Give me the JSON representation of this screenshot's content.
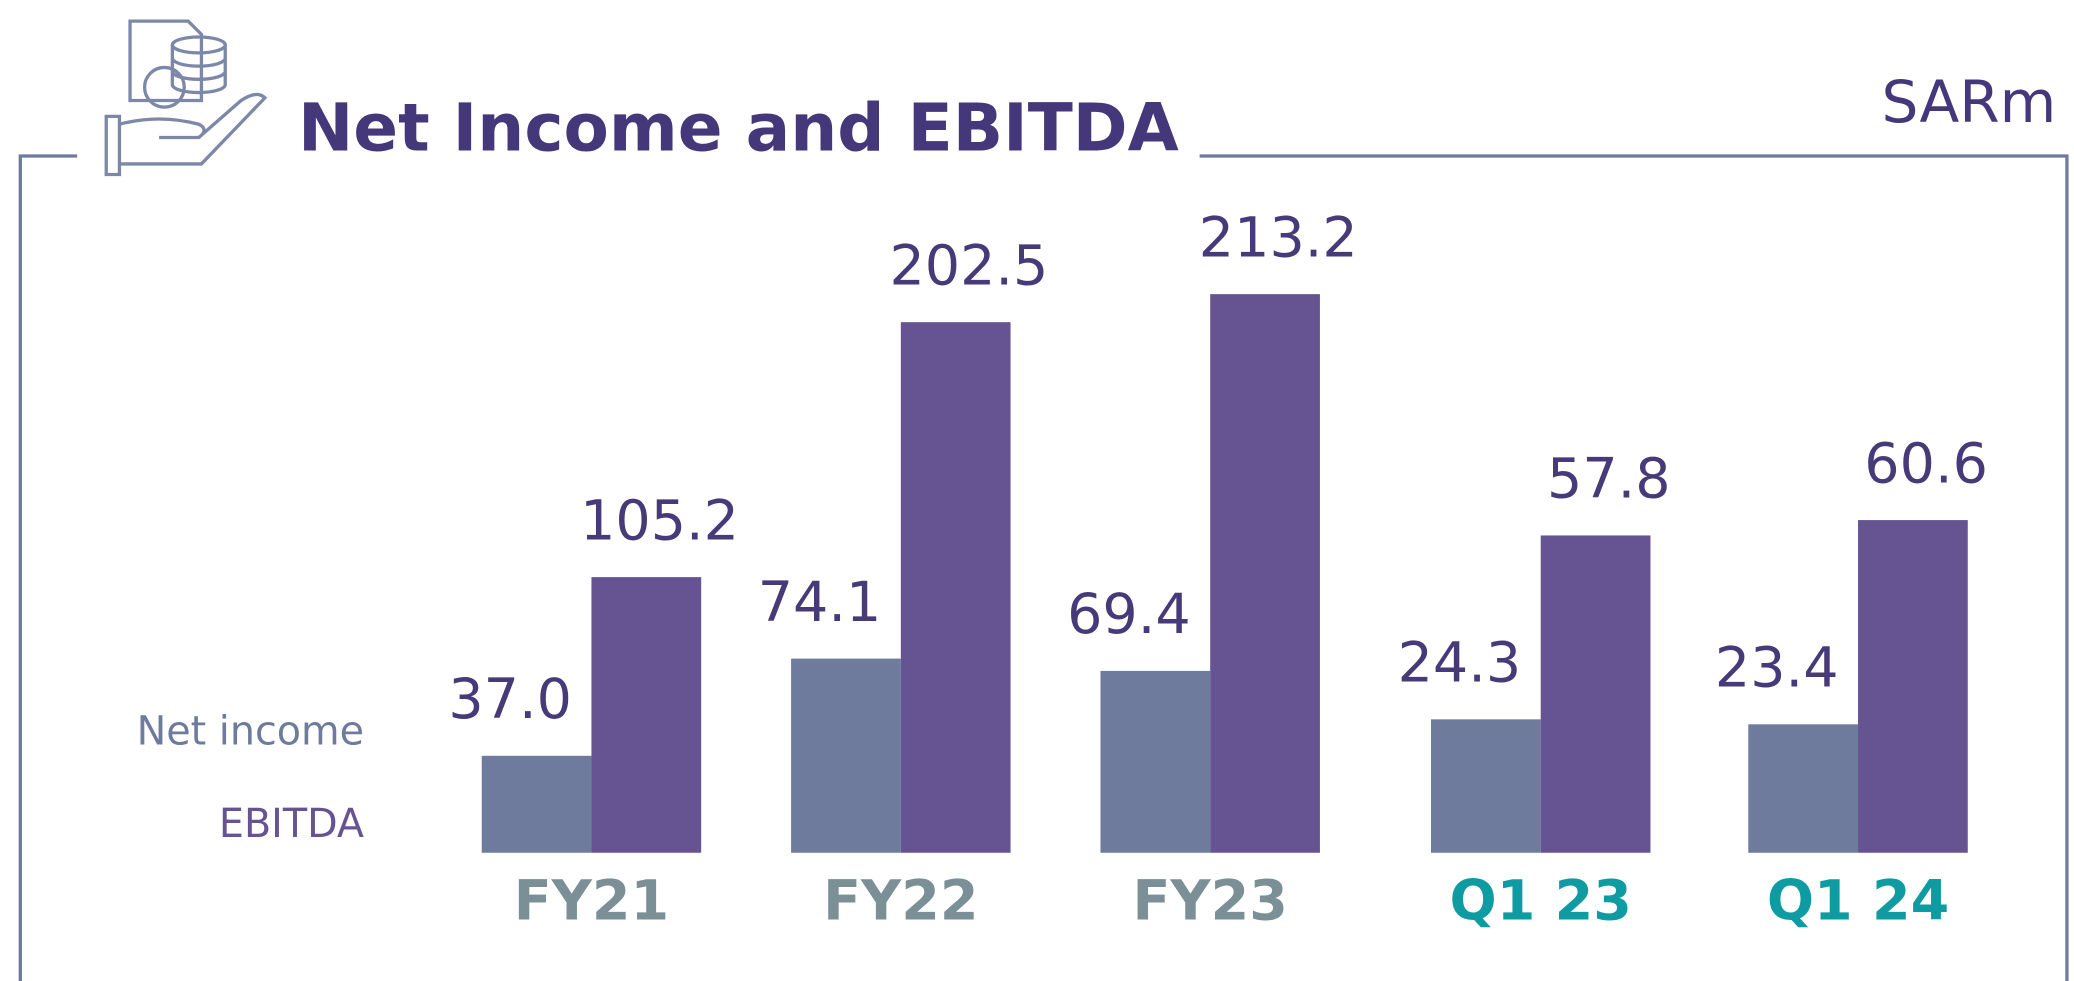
{
  "title": "Net Income and EBITDA",
  "unit": "SARm",
  "chart_data": [
    {
      "type": "bar",
      "categories": [
        "FY21",
        "FY22",
        "FY23"
      ],
      "category_color": "#7b8f97",
      "series": [
        {
          "name": "Net income",
          "color": "#6e7b9c",
          "values": [
            37.0,
            74.1,
            69.4
          ],
          "value_labels": [
            "37.0",
            "74.1",
            "69.4"
          ]
        },
        {
          "name": "EBITDA",
          "color": "#655491",
          "values": [
            105.2,
            202.5,
            213.2
          ],
          "value_labels": [
            "105.2",
            "202.5",
            "213.2"
          ]
        }
      ],
      "ylim": [
        0,
        220
      ]
    },
    {
      "type": "bar",
      "categories": [
        "Q1 23",
        "Q1 24"
      ],
      "category_color": "#0e9ba1",
      "series": [
        {
          "color": "#6e7b9c",
          "values": [
            24.3,
            23.4
          ],
          "value_labels": [
            "24.3",
            "23.4"
          ]
        },
        {
          "color": "#655491",
          "values": [
            57.8,
            60.6
          ],
          "value_labels": [
            "57.8",
            "60.6"
          ]
        }
      ],
      "ylim": [
        0,
        105
      ]
    }
  ]
}
